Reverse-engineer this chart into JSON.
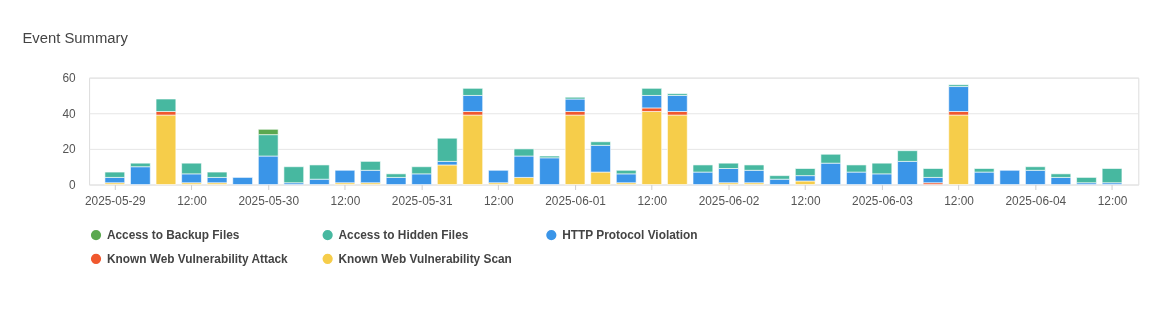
{
  "chart_data": {
    "type": "bar",
    "title": "Event Summary",
    "stacked": true,
    "grid": "y",
    "legend": "bottom",
    "x": [
      "2025-05-29T00:00",
      "2025-05-29T04:00",
      "2025-05-29T08:00",
      "2025-05-29T12:00",
      "2025-05-29T16:00",
      "2025-05-29T20:00",
      "2025-05-30T00:00",
      "2025-05-30T04:00",
      "2025-05-30T08:00",
      "2025-05-30T12:00",
      "2025-05-30T16:00",
      "2025-05-30T20:00",
      "2025-05-31T00:00",
      "2025-05-31T04:00",
      "2025-05-31T08:00",
      "2025-05-31T12:00",
      "2025-05-31T16:00",
      "2025-05-31T20:00",
      "2025-06-01T00:00",
      "2025-06-01T04:00",
      "2025-06-01T08:00",
      "2025-06-01T12:00",
      "2025-06-01T16:00",
      "2025-06-01T20:00",
      "2025-06-02T00:00",
      "2025-06-02T04:00",
      "2025-06-02T08:00",
      "2025-06-02T12:00",
      "2025-06-02T16:00",
      "2025-06-02T20:00",
      "2025-06-03T00:00",
      "2025-06-03T04:00",
      "2025-06-03T08:00",
      "2025-06-03T12:00",
      "2025-06-03T16:00",
      "2025-06-03T20:00",
      "2025-06-04T00:00",
      "2025-06-04T04:00",
      "2025-06-04T08:00",
      "2025-06-04T12:00"
    ],
    "series": [
      {
        "name": "Known Web Vulnerability Scan",
        "color": "#f6cd4a",
        "values": [
          1,
          null,
          39,
          1,
          1,
          null,
          null,
          null,
          null,
          1,
          1,
          null,
          null,
          11,
          39,
          1,
          4,
          null,
          39,
          7,
          1,
          41,
          39,
          null,
          1,
          1,
          null,
          2,
          null,
          null,
          null,
          null,
          null,
          39,
          null,
          null,
          null,
          null,
          null,
          null
        ]
      },
      {
        "name": "Known Web Vulnerability Attack",
        "color": "#f0582e",
        "values": [
          null,
          null,
          2,
          null,
          null,
          null,
          null,
          null,
          null,
          null,
          null,
          null,
          null,
          null,
          2,
          null,
          null,
          null,
          2,
          null,
          null,
          2,
          2,
          null,
          null,
          null,
          null,
          null,
          null,
          null,
          null,
          null,
          1,
          2,
          null,
          null,
          null,
          null,
          null,
          null
        ]
      },
      {
        "name": "HTTP Protocol Violation",
        "color": "#3a95e8",
        "values": [
          3,
          10,
          null,
          5,
          3,
          4,
          16,
          1,
          3,
          7,
          7,
          4,
          6,
          2,
          9,
          7,
          12,
          15,
          7,
          15,
          5,
          7,
          9,
          7,
          8,
          7,
          3,
          3,
          12,
          7,
          6,
          13,
          3,
          14,
          7,
          8,
          8,
          4,
          1,
          1
        ]
      },
      {
        "name": "Access to Hidden Files",
        "color": "#47b8a0",
        "values": [
          3,
          2,
          7,
          6,
          3,
          null,
          12,
          9,
          8,
          null,
          5,
          2,
          4,
          13,
          4,
          null,
          4,
          1,
          1,
          2,
          2,
          4,
          1,
          4,
          3,
          3,
          2,
          4,
          5,
          4,
          6,
          6,
          5,
          1,
          2,
          null,
          2,
          2,
          3,
          8
        ]
      },
      {
        "name": "Access to Backup Files",
        "color": "#5ba84f",
        "values": [
          null,
          null,
          null,
          null,
          null,
          null,
          3,
          null,
          null,
          null,
          null,
          null,
          null,
          null,
          null,
          null,
          null,
          null,
          null,
          null,
          null,
          null,
          null,
          null,
          null,
          null,
          null,
          null,
          null,
          null,
          null,
          null,
          null,
          null,
          null,
          null,
          null,
          null,
          null,
          null
        ]
      }
    ],
    "xlim": [
      "2025-05-28T20:45",
      "2025-06-04T15:20"
    ],
    "xticks": [
      {
        "value": "2025-05-29T00:00",
        "label": "2025-05-29"
      },
      {
        "value": "2025-05-29T12:00",
        "label": "12:00"
      },
      {
        "value": "2025-05-30T00:00",
        "label": "2025-05-30"
      },
      {
        "value": "2025-05-30T12:00",
        "label": "12:00"
      },
      {
        "value": "2025-05-31T00:00",
        "label": "2025-05-31"
      },
      {
        "value": "2025-05-31T12:00",
        "label": "12:00"
      },
      {
        "value": "2025-06-01T00:00",
        "label": "2025-06-01"
      },
      {
        "value": "2025-06-01T12:00",
        "label": "12:00"
      },
      {
        "value": "2025-06-02T00:00",
        "label": "2025-06-02"
      },
      {
        "value": "2025-06-02T12:00",
        "label": "12:00"
      },
      {
        "value": "2025-06-03T00:00",
        "label": "2025-06-03"
      },
      {
        "value": "2025-06-03T12:00",
        "label": "12:00"
      },
      {
        "value": "2025-06-04T00:00",
        "label": "2025-06-04"
      },
      {
        "value": "2025-06-04T12:00",
        "label": "12:00"
      }
    ],
    "ylim": [
      0,
      60
    ],
    "yticks": [
      0,
      20,
      40,
      60
    ]
  }
}
